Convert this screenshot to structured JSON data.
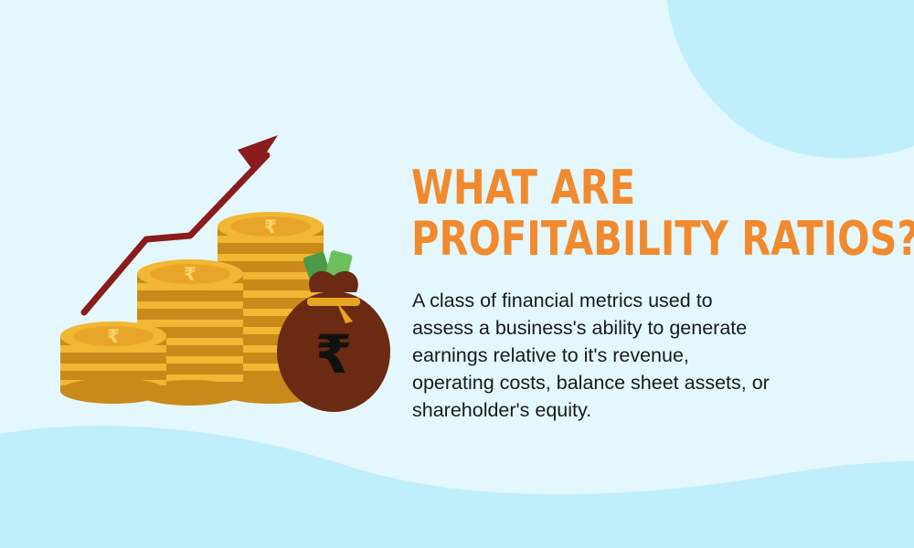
{
  "title": {
    "line1": "WHAT ARE",
    "line2": "PROFITABILITY RATIOS?"
  },
  "description": {
    "lines": [
      "A class of financial metrics used to",
      "assess a business's ability to generate",
      "earnings relative to it's revenue,",
      "operating costs, balance sheet assets, or",
      "shareholder's equity."
    ]
  },
  "colors": {
    "background": "#e3f7fc",
    "blob": "#bfeffa",
    "title": "#f18a2e",
    "text": "#1a1a1a",
    "coin": "#f2b733",
    "coin_dark": "#c98a1a",
    "arrow": "#8a1c1c",
    "bag": "#6b2a12"
  },
  "icons": {
    "coin_symbol": "rupee-coin-icon",
    "bag_symbol": "₹"
  }
}
